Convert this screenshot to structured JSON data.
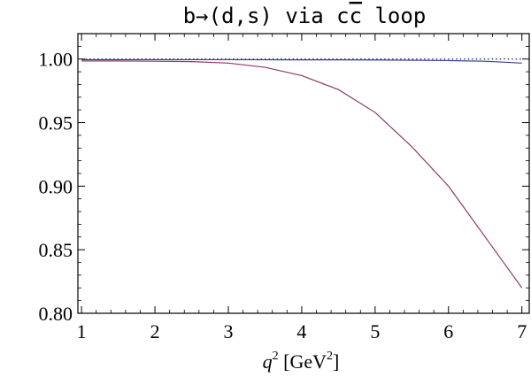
{
  "chart_data": {
    "type": "line",
    "title_prefix": "b→(d,s) via c",
    "title_overlined": "c",
    "title_suffix": " loop",
    "xlabel_var": "q",
    "xlabel_sup": "2",
    "xlabel_unit_prefix": " [GeV",
    "xlabel_unit_sup": "2",
    "xlabel_unit_suffix": "]",
    "xlim": [
      0.95,
      7.1
    ],
    "ylim": [
      0.8,
      1.02
    ],
    "xticks": [
      1,
      2,
      3,
      4,
      5,
      6,
      7
    ],
    "xtick_labels": [
      "1",
      "2",
      "3",
      "4",
      "5",
      "6",
      "7"
    ],
    "yticks": [
      0.8,
      0.85,
      0.9,
      0.95,
      1.0
    ],
    "ytick_labels": [
      "0.80",
      "0.85",
      "0.90",
      "0.95",
      "1.00"
    ],
    "grid": false,
    "series": [
      {
        "color": "#1a1a80",
        "style": "dotted",
        "x": [
          1,
          2,
          3,
          4,
          5,
          6,
          7
        ],
        "y": [
          1.0,
          1.0,
          1.0,
          1.0,
          1.0,
          1.0,
          1.0
        ]
      },
      {
        "color": "#3d3d8f",
        "style": "solid",
        "x": [
          1,
          2,
          3,
          4,
          5,
          6,
          6.5,
          7
        ],
        "y": [
          0.9995,
          0.9995,
          0.9995,
          0.9994,
          0.9993,
          0.9988,
          0.9983,
          0.9968
        ]
      },
      {
        "color": "#8b3a6e",
        "style": "solid",
        "x": [
          1,
          1.5,
          2,
          2.5,
          3,
          3.5,
          4,
          4.5,
          5,
          5.5,
          6,
          6.25,
          6.5,
          6.75,
          7
        ],
        "y": [
          0.9985,
          0.9985,
          0.9983,
          0.998,
          0.9968,
          0.9935,
          0.987,
          0.976,
          0.958,
          0.931,
          0.9,
          0.88,
          0.86,
          0.84,
          0.82
        ]
      }
    ]
  }
}
